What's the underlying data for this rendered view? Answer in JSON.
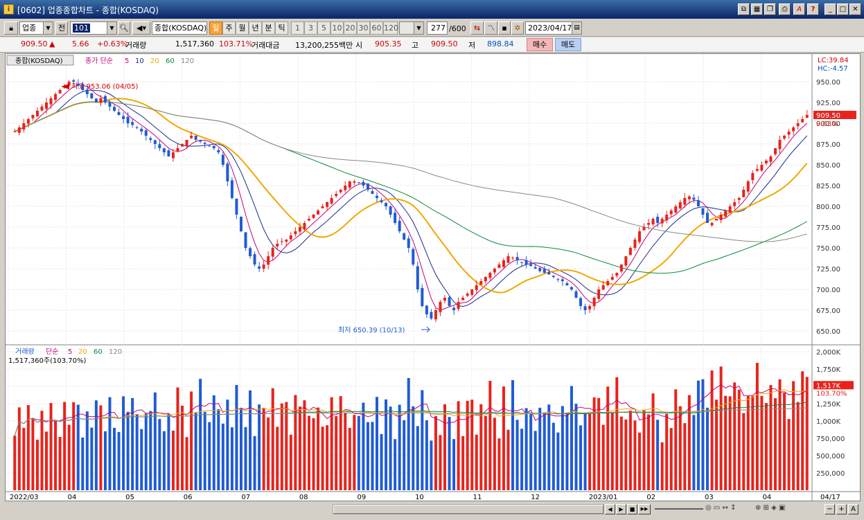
{
  "window": {
    "title": "[0602] 업종종합차트 - 종합(KOSDAQ)",
    "icon_label": "i",
    "controls": [
      "restore-icon",
      "grid-icon",
      "copy-icon",
      "print-icon",
      "font-icon",
      "help-icon",
      "minimize-icon",
      "maximize-icon",
      "close-icon"
    ]
  },
  "toolbar": {
    "market_select": "업종",
    "prev_label": "전",
    "code_value": "101",
    "name_value": "종합(KOSDAQ)",
    "periods": [
      "일",
      "주",
      "월",
      "년",
      "분",
      "틱"
    ],
    "selected_period": "일",
    "intervals": [
      "1",
      "3",
      "5",
      "10",
      "20",
      "30",
      "60",
      "120"
    ],
    "count_value": "277",
    "count_total": "/600",
    "date_value": "2023/04/17"
  },
  "quote": {
    "price": "909.50",
    "arrow": "▲",
    "change": "5.66",
    "change_pct": "+0.63%",
    "volume_label": "거래량",
    "volume": "1,517,360",
    "volume_pct": "103.71%",
    "amount_label": "거래대금",
    "amount": "13,200,255백만",
    "open_label": "시",
    "open": "905.35",
    "high_label": "고",
    "high": "909.50",
    "low_label": "저",
    "low": "898.84",
    "buy_label": "매수",
    "sell_label": "매도"
  },
  "chart_data": [
    {
      "type": "candlestick",
      "title": "종합(KOSDAQ)",
      "legend": {
        "prefix": "종가 단순",
        "periods": [
          "5",
          "10",
          "20",
          "60",
          "120"
        ]
      },
      "ylim": [
        640,
        975
      ],
      "y_ticks": [
        "950.00",
        "925.00",
        "900.00",
        "875.00",
        "850.00",
        "825.00",
        "800.00",
        "775.00",
        "750.00",
        "725.00",
        "700.00",
        "675.00",
        "650.00"
      ],
      "lc_label": "LC:39.84",
      "hc_label": "HC:-4.57",
      "last_price_label": "909.50",
      "last_pct_label": "0.63%",
      "annotations": {
        "high": "최고 953.06 (04/05)",
        "low": "최저 650.39 (10/13)"
      },
      "x_labels": [
        "2022/03",
        "04",
        "05",
        "06",
        "07",
        "08",
        "09",
        "10",
        "11",
        "12",
        "2023/01",
        "02",
        "03",
        "04"
      ],
      "x_end_label": "04/17",
      "close_series": [
        890,
        895,
        900,
        905,
        910,
        915,
        920,
        925,
        930,
        935,
        940,
        945,
        950,
        950,
        945,
        940,
        935,
        930,
        925,
        930,
        925,
        920,
        915,
        910,
        905,
        900,
        898,
        895,
        890,
        885,
        880,
        875,
        870,
        865,
        860,
        865,
        870,
        875,
        880,
        885,
        880,
        878,
        875,
        872,
        870,
        865,
        850,
        830,
        810,
        790,
        770,
        750,
        740,
        730,
        725,
        730,
        740,
        750,
        755,
        758,
        760,
        765,
        770,
        775,
        780,
        785,
        790,
        795,
        800,
        805,
        810,
        815,
        820,
        825,
        830,
        830,
        828,
        825,
        820,
        815,
        810,
        805,
        800,
        790,
        780,
        770,
        760,
        750,
        730,
        700,
        680,
        670,
        665,
        675,
        685,
        690,
        680,
        675,
        685,
        690,
        695,
        700,
        705,
        710,
        715,
        720,
        725,
        730,
        735,
        740,
        738,
        735,
        732,
        730,
        728,
        725,
        722,
        720,
        718,
        715,
        712,
        710,
        705,
        700,
        690,
        680,
        675,
        680,
        690,
        700,
        705,
        710,
        715,
        720,
        730,
        740,
        750,
        760,
        770,
        775,
        780,
        785,
        780,
        785,
        790,
        795,
        800,
        805,
        810,
        812,
        808,
        800,
        790,
        780,
        780,
        785,
        790,
        795,
        800,
        805,
        810,
        820,
        830,
        840,
        845,
        850,
        855,
        860,
        870,
        880,
        885,
        890,
        895,
        900,
        905,
        910
      ]
    },
    {
      "type": "bar",
      "title": "거래량",
      "legend": {
        "prefix": "단순",
        "periods": [
          "5",
          "20",
          "60",
          "120"
        ]
      },
      "subtitle": "1,517,360주(103.70%)",
      "ylim": [
        0,
        2100
      ],
      "y_ticks": [
        "2,000K",
        "1,750K",
        "1,500K",
        "1,250K",
        "1,000K",
        "750,000",
        "500,000",
        "250,000"
      ],
      "last_value_label": "1,517K",
      "last_pct_label": "103.70%"
    }
  ],
  "scrollbar": {
    "buttons": [
      "◀",
      "▶",
      "■",
      "▶▶",
      "−",
      "+",
      "A"
    ]
  }
}
